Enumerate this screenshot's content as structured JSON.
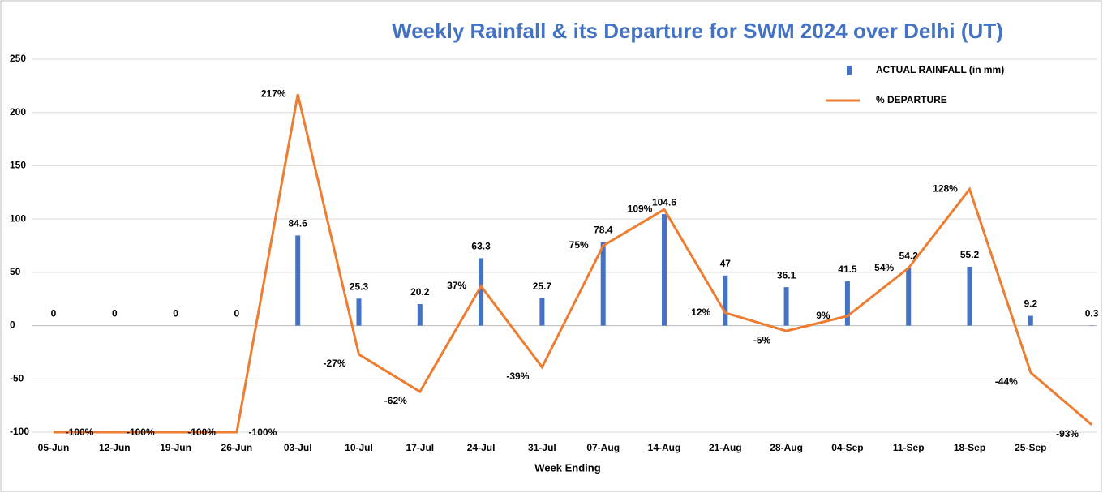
{
  "chart_data": {
    "type": "bar_line",
    "title": "Weekly Rainfall & its Departure for SWM 2024 over Delhi (UT)",
    "x_label": "Week Ending",
    "categories": [
      "05-Jun",
      "12-Jun",
      "19-Jun",
      "26-Jun",
      "03-Jul",
      "10-Jul",
      "17-Jul",
      "24-Jul",
      "31-Jul",
      "07-Aug",
      "14-Aug",
      "21-Aug",
      "28-Aug",
      "04-Sep",
      "11-Sep",
      "18-Sep",
      "25-Sep",
      null
    ],
    "series": [
      {
        "name": "ACTUAL RAINFALL (in mm)",
        "type": "bar",
        "color": "#4472c4",
        "values": [
          0,
          0,
          0,
          0,
          84.6,
          25.3,
          20.2,
          63.3,
          25.7,
          78.4,
          104.6,
          47,
          36.1,
          41.5,
          54.2,
          55.2,
          9.2,
          0.3
        ]
      },
      {
        "name": "% DEPARTURE",
        "type": "line",
        "color": "#ed7d31",
        "values": [
          -100,
          -100,
          -100,
          -100,
          217,
          -27,
          -62,
          37,
          -39,
          75,
          109,
          12,
          -5,
          9,
          54,
          128,
          -44,
          -93
        ],
        "value_labels": [
          "-100%",
          "-100%",
          "-100%",
          "-100%",
          "217%",
          "-27%",
          "-62%",
          "37%",
          "-39%",
          "75%",
          "109%",
          "12%",
          "-5%",
          "9%",
          "54%",
          "128%",
          "-44%",
          "-93%"
        ]
      }
    ],
    "ylim": [
      -100,
      250
    ],
    "yticks": [
      -100,
      -50,
      0,
      50,
      100,
      150,
      200,
      250
    ],
    "grid": true,
    "legend": "top-right"
  }
}
